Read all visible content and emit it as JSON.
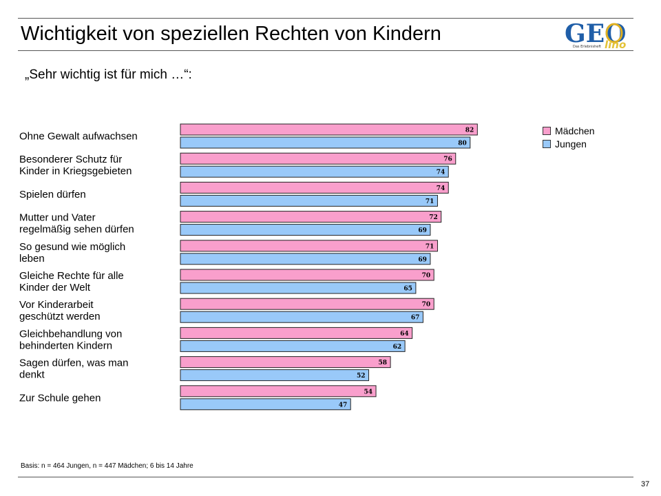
{
  "header": {
    "title": "Wichtigkeit von speziellen  Rechten von Kindern",
    "logo_text": "GEO",
    "logo_suffix": "lino",
    "logo_tagline": "Das Erlebnisheft"
  },
  "subtitle": "„Sehr wichtig ist für mich …“:",
  "legend": [
    {
      "label": "Mädchen",
      "color": "#f99fcc"
    },
    {
      "label": "Jungen",
      "color": "#99c9f9"
    }
  ],
  "chart_data": {
    "type": "bar",
    "orientation": "horizontal",
    "categories": [
      [
        "Ohne Gewalt aufwachsen"
      ],
      [
        "Besonderer Schutz für",
        "Kinder in Kriegsgebieten"
      ],
      [
        "Spielen dürfen"
      ],
      [
        "Mutter und Vater",
        "regelmäßig sehen dürfen"
      ],
      [
        "So gesund wie möglich",
        "leben"
      ],
      [
        "Gleiche Rechte für alle",
        "Kinder der Welt"
      ],
      [
        "Vor Kinderarbeit",
        "geschützt werden"
      ],
      [
        "Gleichbehandlung von",
        "behinderten Kindern"
      ],
      [
        "Sagen dürfen, was man",
        "denkt"
      ],
      [
        "Zur Schule gehen"
      ]
    ],
    "series": [
      {
        "name": "Mädchen",
        "color": "#f99fcc",
        "values": [
          82,
          76,
          74,
          72,
          71,
          70,
          70,
          64,
          58,
          54
        ]
      },
      {
        "name": "Jungen",
        "color": "#99c9f9",
        "values": [
          80,
          74,
          71,
          69,
          69,
          65,
          67,
          62,
          52,
          47
        ]
      }
    ],
    "xlim": [
      0,
      100
    ],
    "data_labels": true,
    "grid": false,
    "legend_position": "top-right"
  },
  "footnote": "Basis: n = 464 Jungen, n = 447 Mädchen; 6 bis 14 Jahre",
  "page_number": "37"
}
